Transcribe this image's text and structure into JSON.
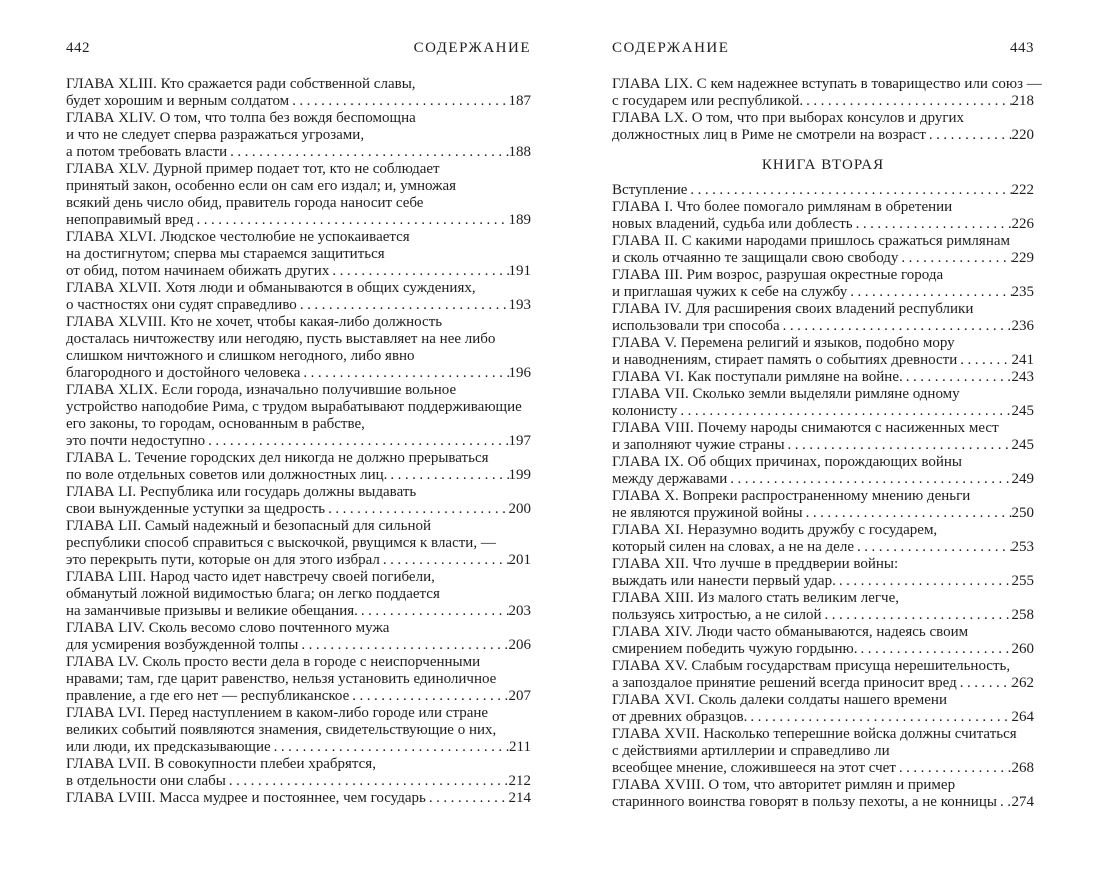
{
  "book": {
    "left_page": {
      "page_number": "442",
      "running_title": "СОДЕРЖАНИЕ",
      "entries": [
        {
          "lines": [
            "ГЛАВА XLIII. Кто сражается ради собственной славы,",
            "будет хорошим и верным солдатом"
          ],
          "page": "187"
        },
        {
          "lines": [
            "ГЛАВА XLIV. О том, что толпа без вождя беспомощна",
            "и что не следует сперва разражаться угрозами,",
            "а потом требовать власти"
          ],
          "page": "188"
        },
        {
          "lines": [
            "ГЛАВА XLV. Дурной пример подает тот, кто не соблюдает",
            "принятый закон, особенно если он сам его издал; и, умножая",
            "всякий день число обид, правитель города наносит себе",
            "непоправимый вред"
          ],
          "page": "189"
        },
        {
          "lines": [
            "ГЛАВА XLVI. Людское честолюбие не успокаивается",
            "на достигнутом; сперва мы стараемся защититься",
            "от обид, потом начинаем обижать других"
          ],
          "page": "191"
        },
        {
          "lines": [
            "ГЛАВА XLVII. Хотя люди и обманываются в общих суждениях,",
            "о частностях они судят справедливо"
          ],
          "page": "193"
        },
        {
          "lines": [
            "ГЛАВА XLVIII. Кто не хочет, чтобы какая-либо должность",
            "досталась ничтожеству или негодяю, пусть выставляет на нее либо",
            "слишком ничтожного и слишком негодного, либо явно",
            "благородного и достойного человека"
          ],
          "page": "196"
        },
        {
          "lines": [
            "ГЛАВА XLIX. Если города, изначально получившие вольное",
            "устройство наподобие Рима, с трудом вырабатывают поддерживающие",
            "его законы, то городам, основанным в рабстве,",
            "это почти недоступно"
          ],
          "page": "197"
        },
        {
          "lines": [
            "ГЛАВА L. Течение городских дел никогда не должно прерываться",
            "по воле отдельных советов или должностных лиц."
          ],
          "page": "199"
        },
        {
          "lines": [
            "ГЛАВА LI. Республика или государь должны выдавать",
            "свои вынужденные уступки за щедрость"
          ],
          "page": "200"
        },
        {
          "lines": [
            "ГЛАВА LII. Самый надежный и безопасный для сильной",
            "республики способ справиться с выскочкой, рвущимся к власти, —",
            "это перекрыть пути, которые он для этого избрал"
          ],
          "page": "201"
        },
        {
          "lines": [
            "ГЛАВА LIII. Народ часто идет навстречу своей погибели,",
            "обманутый ложной видимостью блага; он легко поддается",
            "на заманчивые призывы и великие обещания."
          ],
          "page": "203"
        },
        {
          "lines": [
            "ГЛАВА LIV. Сколь весомо слово почтенного мужа",
            "для усмирения возбужденной толпы"
          ],
          "page": "206"
        },
        {
          "lines": [
            "ГЛАВА LV. Сколь просто вести дела в городе с неиспорченными",
            "нравами; там, где царит равенство, нельзя установить единоличное",
            "правление, а где его нет — республиканское"
          ],
          "page": "207"
        },
        {
          "lines": [
            "ГЛАВА LVI. Перед наступлением в каком-либо городе или стране",
            "великих событий появляются знамения, свидетельствующие о них,",
            "или люди, их предсказывающие"
          ],
          "page": "211"
        },
        {
          "lines": [
            "ГЛАВА LVII. В совокупности плебеи храбрятся,",
            "в отдельности они слабы"
          ],
          "page": "212"
        },
        {
          "lines": [
            "ГЛАВА LVIII. Масса мудрее и постояннее, чем государь"
          ],
          "page": "214"
        }
      ]
    },
    "right_page": {
      "page_number": "443",
      "running_title": "СОДЕРЖАНИЕ",
      "entries": [
        {
          "lines": [
            "ГЛАВА LIX. С кем надежнее вступать в товарищество или союз —",
            "с государем или республикой."
          ],
          "page": "218"
        },
        {
          "lines": [
            "ГЛАВА LX. О том, что при выборах консулов и других",
            "должностных лиц в Риме не смотрели на возраст"
          ],
          "page": "220"
        },
        {
          "heading": "КНИГА ВТОРАЯ"
        },
        {
          "lines": [
            "Вступление"
          ],
          "page": "222"
        },
        {
          "lines": [
            "ГЛАВА I. Что более помогало римлянам в обретении",
            "новых владений, судьба или доблесть"
          ],
          "page": "226"
        },
        {
          "lines": [
            "ГЛАВА II. С какими народами пришлось сражаться римлянам",
            "и сколь отчаянно те защищали свою свободу"
          ],
          "page": "229"
        },
        {
          "lines": [
            "ГЛАВА III. Рим возрос, разрушая окрестные города",
            "и приглашая чужих к себе на службу"
          ],
          "page": "235"
        },
        {
          "lines": [
            "ГЛАВА IV. Для расширения своих владений республики",
            "использовали три способа"
          ],
          "page": "236"
        },
        {
          "lines": [
            "ГЛАВА V. Перемена религий и языков, подобно мору",
            "и наводнениям, стирает память о событиях древности"
          ],
          "page": "241"
        },
        {
          "lines": [
            "ГЛАВА VI. Как поступали римляне на войне."
          ],
          "page": "243"
        },
        {
          "lines": [
            "ГЛАВА VII. Сколько земли выделяли римляне одному",
            "колонисту"
          ],
          "page": "245"
        },
        {
          "lines": [
            "ГЛАВА VIII. Почему народы снимаются с насиженных мест",
            "и заполняют чужие страны"
          ],
          "page": "245"
        },
        {
          "lines": [
            "ГЛАВА IX. Об общих причинах, порождающих войны",
            "между державами"
          ],
          "page": "249"
        },
        {
          "lines": [
            "ГЛАВА X. Вопреки распространенному мнению деньги",
            "не являются пружиной войны"
          ],
          "page": "250"
        },
        {
          "lines": [
            "ГЛАВА XI. Неразумно водить дружбу с государем,",
            "который силен на словах, а не на деле"
          ],
          "page": "253"
        },
        {
          "lines": [
            "ГЛАВА XII. Что лучше в преддверии войны:",
            "выждать или нанести первый удар."
          ],
          "page": "255"
        },
        {
          "lines": [
            "ГЛАВА XIII. Из малого стать великим легче,",
            "пользуясь хитростью, а не силой"
          ],
          "page": "258"
        },
        {
          "lines": [
            "ГЛАВА XIV. Люди часто обманываются, надеясь своим",
            "смирением победить чужую гордыню."
          ],
          "page": "260"
        },
        {
          "lines": [
            "ГЛАВА XV. Слабым государствам присуща нерешительность,",
            "а запоздалое принятие решений всегда приносит вред"
          ],
          "page": "262"
        },
        {
          "lines": [
            "ГЛАВА XVI. Сколь далеки солдаты нашего времени",
            "от древних образцов."
          ],
          "page": "264"
        },
        {
          "lines": [
            "ГЛАВА XVII. Насколько теперешние войска должны считаться",
            "с действиями артиллерии и справедливо ли",
            "всеобщее мнение, сложившееся на этот счет"
          ],
          "page": "268"
        },
        {
          "lines": [
            "ГЛАВА XVIII. О том, что авторитет римлян и пример",
            "старинного воинства говорят в пользу пехоты, а не конницы"
          ],
          "page": "274"
        }
      ]
    }
  }
}
